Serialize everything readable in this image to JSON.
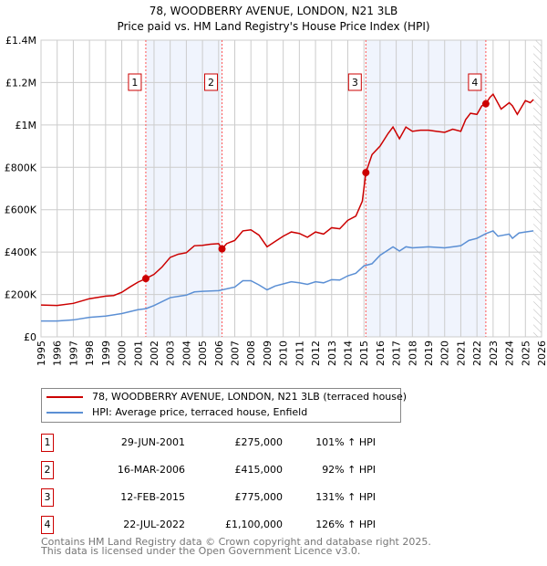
{
  "chart_data": {
    "type": "line",
    "title": "78, WOODBERRY AVENUE, LONDON, N21 3LB",
    "subtitle": "Price paid vs. HM Land Registry's House Price Index (HPI)",
    "xlim": [
      1995,
      2026
    ],
    "ylim": [
      0,
      1400000
    ],
    "y_ticks": [
      {
        "v": 0,
        "l": "£0"
      },
      {
        "v": 200000,
        "l": "£200K"
      },
      {
        "v": 400000,
        "l": "£400K"
      },
      {
        "v": 600000,
        "l": "£600K"
      },
      {
        "v": 800000,
        "l": "£800K"
      },
      {
        "v": 1000000,
        "l": "£1M"
      },
      {
        "v": 1200000,
        "l": "£1.2M"
      },
      {
        "v": 1400000,
        "l": "£1.4M"
      }
    ],
    "x_ticks": [
      "1995",
      "1996",
      "1997",
      "1998",
      "1999",
      "2000",
      "2001",
      "2002",
      "2003",
      "2004",
      "2005",
      "2006",
      "2007",
      "2008",
      "2009",
      "2010",
      "2011",
      "2012",
      "2013",
      "2014",
      "2015",
      "2016",
      "2017",
      "2018",
      "2019",
      "2020",
      "2021",
      "2022",
      "2023",
      "2024",
      "2025",
      "2026"
    ],
    "grid": true,
    "legend_placement": "bottom",
    "series": [
      {
        "name": "78, WOODBERRY AVENUE, LONDON, N21 3LB (terraced house)",
        "color": "#cc0000",
        "points": [
          [
            1995,
            150
          ],
          [
            1996,
            148
          ],
          [
            1997,
            158
          ],
          [
            1998,
            180
          ],
          [
            1999,
            192
          ],
          [
            1999.5,
            195
          ],
          [
            2000,
            210
          ],
          [
            2000.5,
            235
          ],
          [
            2001,
            258
          ],
          [
            2001.49,
            275
          ],
          [
            2002,
            295
          ],
          [
            2002.5,
            330
          ],
          [
            2003,
            375
          ],
          [
            2003.5,
            390
          ],
          [
            2004,
            397
          ],
          [
            2004.5,
            430
          ],
          [
            2005,
            432
          ],
          [
            2005.5,
            437
          ],
          [
            2006,
            440
          ],
          [
            2006.21,
            415
          ],
          [
            2006.5,
            440
          ],
          [
            2007,
            455
          ],
          [
            2007.5,
            500
          ],
          [
            2008,
            505
          ],
          [
            2008.5,
            480
          ],
          [
            2009,
            425
          ],
          [
            2009.5,
            450
          ],
          [
            2010,
            475
          ],
          [
            2010.5,
            495
          ],
          [
            2011,
            488
          ],
          [
            2011.5,
            470
          ],
          [
            2012,
            495
          ],
          [
            2012.5,
            485
          ],
          [
            2013,
            515
          ],
          [
            2013.5,
            510
          ],
          [
            2014,
            550
          ],
          [
            2014.5,
            570
          ],
          [
            2014.9,
            640
          ],
          [
            2015.12,
            775
          ],
          [
            2015.5,
            860
          ],
          [
            2016,
            900
          ],
          [
            2016.5,
            960
          ],
          [
            2016.8,
            990
          ],
          [
            2017.2,
            935
          ],
          [
            2017.6,
            990
          ],
          [
            2018,
            970
          ],
          [
            2018.5,
            975
          ],
          [
            2019,
            975
          ],
          [
            2019.5,
            970
          ],
          [
            2020,
            965
          ],
          [
            2020.5,
            980
          ],
          [
            2021,
            970
          ],
          [
            2021.3,
            1025
          ],
          [
            2021.6,
            1055
          ],
          [
            2022,
            1050
          ],
          [
            2022.3,
            1090
          ],
          [
            2022.55,
            1100
          ],
          [
            2022.8,
            1130
          ],
          [
            2023,
            1145
          ],
          [
            2023.5,
            1075
          ],
          [
            2024,
            1105
          ],
          [
            2024.2,
            1090
          ],
          [
            2024.5,
            1050
          ],
          [
            2025,
            1115
          ],
          [
            2025.3,
            1105
          ],
          [
            2025.5,
            1120
          ]
        ]
      },
      {
        "name": "HPI: Average price, terraced house, Enfield",
        "color": "#5b8fd4",
        "points": [
          [
            1995,
            75
          ],
          [
            1996,
            75
          ],
          [
            1997,
            80
          ],
          [
            1998,
            92
          ],
          [
            1999,
            98
          ],
          [
            2000,
            110
          ],
          [
            2001,
            128
          ],
          [
            2001.5,
            133
          ],
          [
            2002,
            148
          ],
          [
            2003,
            185
          ],
          [
            2004,
            197
          ],
          [
            2004.5,
            212
          ],
          [
            2005,
            215
          ],
          [
            2006,
            218
          ],
          [
            2007,
            235
          ],
          [
            2007.5,
            265
          ],
          [
            2008,
            265
          ],
          [
            2008.5,
            245
          ],
          [
            2009,
            222
          ],
          [
            2009.5,
            240
          ],
          [
            2010,
            250
          ],
          [
            2010.5,
            260
          ],
          [
            2011,
            255
          ],
          [
            2011.5,
            248
          ],
          [
            2012,
            260
          ],
          [
            2012.5,
            255
          ],
          [
            2013,
            270
          ],
          [
            2013.5,
            268
          ],
          [
            2014,
            288
          ],
          [
            2014.5,
            300
          ],
          [
            2015,
            335
          ],
          [
            2015.5,
            345
          ],
          [
            2016,
            385
          ],
          [
            2016.5,
            410
          ],
          [
            2016.8,
            425
          ],
          [
            2017.2,
            405
          ],
          [
            2017.6,
            425
          ],
          [
            2018,
            420
          ],
          [
            2019,
            425
          ],
          [
            2020,
            420
          ],
          [
            2020.5,
            425
          ],
          [
            2021,
            430
          ],
          [
            2021.5,
            455
          ],
          [
            2022,
            465
          ],
          [
            2022.55,
            487
          ],
          [
            2023,
            500
          ],
          [
            2023.3,
            475
          ],
          [
            2024,
            485
          ],
          [
            2024.2,
            465
          ],
          [
            2024.6,
            490
          ],
          [
            2025,
            495
          ],
          [
            2025.5,
            500
          ]
        ]
      }
    ],
    "value_unit": "thousand GBP",
    "forecast_hatch_from": 2025.5,
    "sales": [
      {
        "n": "1",
        "x": 2001.49,
        "y": 275,
        "date": "29-JUN-2001",
        "price": "£275,000",
        "hpi": "101% ↑ HPI"
      },
      {
        "n": "2",
        "x": 2006.21,
        "y": 415,
        "date": "16-MAR-2006",
        "price": "£415,000",
        "hpi": "92% ↑ HPI"
      },
      {
        "n": "3",
        "x": 2015.12,
        "y": 775,
        "date": "12-FEB-2015",
        "price": "£775,000",
        "hpi": "131% ↑ HPI"
      },
      {
        "n": "4",
        "x": 2022.55,
        "y": 1100,
        "date": "22-JUL-2022",
        "price": "£1,100,000",
        "hpi": "126% ↑ HPI"
      }
    ],
    "shaded_spans": [
      [
        2001.49,
        2006.21
      ],
      [
        2015.12,
        2022.55
      ]
    ]
  },
  "footer": {
    "line1": "Contains HM Land Registry data © Crown copyright and database right 2025.",
    "line2": "This data is licensed under the Open Government Licence v3.0."
  }
}
